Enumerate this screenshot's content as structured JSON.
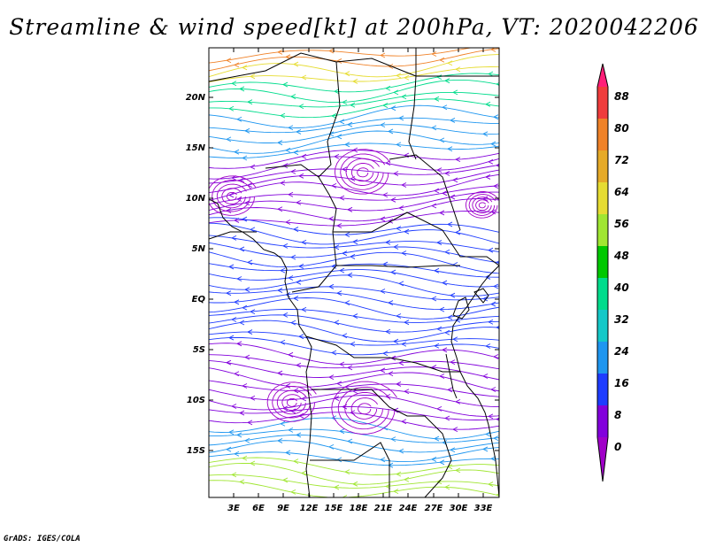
{
  "title": "Streamline & wind speed[kt] at 200hPa, VT: 2020042206",
  "footer": "GrADS: IGES/COLA",
  "map": {
    "lat_ticks": [
      "20N",
      "15N",
      "10N",
      "5N",
      "EQ",
      "5S",
      "10S",
      "15S"
    ],
    "lon_ticks": [
      "3E",
      "6E",
      "9E",
      "12E",
      "15E",
      "18E",
      "21E",
      "24E",
      "27E",
      "30E",
      "33E"
    ]
  },
  "colorbar": {
    "labels": [
      "88",
      "80",
      "72",
      "64",
      "56",
      "48",
      "40",
      "32",
      "24",
      "16",
      "8",
      "0"
    ],
    "colors": [
      "#ff1e78",
      "#f03c3c",
      "#f08228",
      "#e6aa28",
      "#e6dc32",
      "#a0e632",
      "#00c800",
      "#00dc8c",
      "#14c8c8",
      "#1e96f0",
      "#1e3cff",
      "#8200dc",
      "#a000c8"
    ]
  }
}
